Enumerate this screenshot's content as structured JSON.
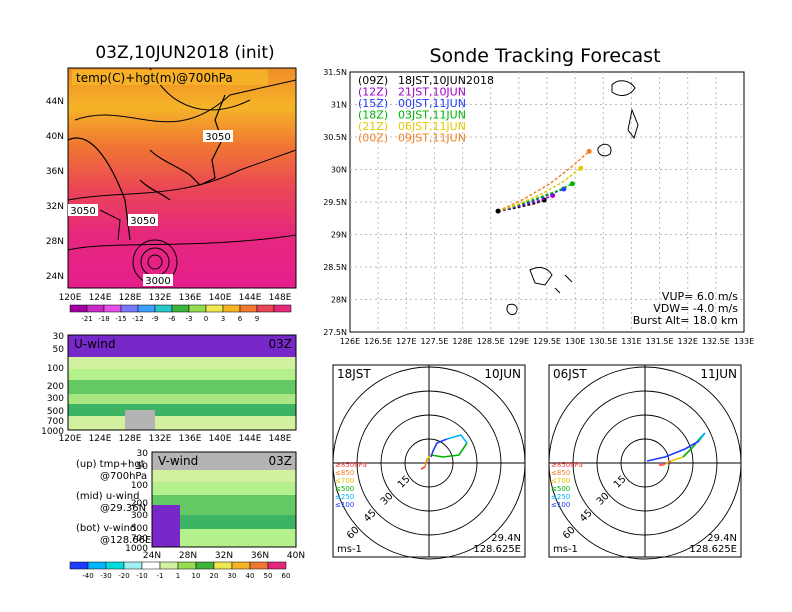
{
  "left": {
    "title": "03Z,10JUN2018 (init)",
    "map_label": "temp(C)+hgt(m)@700hPa",
    "lat_ticks": [
      "44N",
      "40N",
      "36N",
      "32N",
      "28N",
      "24N"
    ],
    "lon_ticks": [
      "120E",
      "124E",
      "128E",
      "132E",
      "136E",
      "140E",
      "144E",
      "148E"
    ],
    "contour_labels": [
      "3050",
      "3050",
      "3050",
      "3000"
    ],
    "temp_scale": [
      "-21",
      "-18",
      "-15",
      "-12",
      "-9",
      "-6",
      "-3",
      "0",
      "3",
      "6",
      "9"
    ],
    "u_panel": {
      "label": "U-wind",
      "time": "03Z",
      "p_ticks": [
        "30",
        "50",
        "100",
        "200",
        "300",
        "500",
        "700",
        "1000"
      ],
      "lon_ticks": [
        "120E",
        "124E",
        "128E",
        "132E",
        "136E",
        "140E",
        "144E",
        "148E"
      ]
    },
    "v_panel": {
      "label": "V-wind",
      "time": "03Z",
      "p_ticks": [
        "30",
        "50",
        "100",
        "200",
        "300",
        "500",
        "700",
        "1000"
      ],
      "lat_ticks": [
        "24N",
        "28N",
        "32N",
        "36N",
        "40N"
      ]
    },
    "legend_lines": [
      "(up) tmp+hgt",
      "@700hPa",
      "(mid) u-wind",
      "@29.36N",
      "(bot) v-wind",
      "@128.66E"
    ],
    "wind_scale": [
      "-40",
      "-30",
      "-20",
      "-10",
      "-1",
      "1",
      "10",
      "20",
      "30",
      "40",
      "50",
      "60"
    ]
  },
  "right": {
    "title": "Sonde Tracking Forecast",
    "vup": "VUP=  6.0  m/s",
    "vdw": "VDW= -4.0  m/s",
    "burst": "Burst Alt=  18.0  km",
    "legend": [
      {
        "code": "(09Z)",
        "time": "18JST,10JUN2018",
        "color": "#000000"
      },
      {
        "code": "(12Z)",
        "time": "21JST,10JUN",
        "color": "#a000c8"
      },
      {
        "code": "(15Z)",
        "time": "00JST,11JUN",
        "color": "#1e3cff"
      },
      {
        "code": "(18Z)",
        "time": "03JST,11JUN",
        "color": "#00b400"
      },
      {
        "code": "(21Z)",
        "time": "06JST,11JUN",
        "color": "#e6c800"
      },
      {
        "code": "(00Z)",
        "time": "09JST,11JUN",
        "color": "#f08228"
      }
    ]
  },
  "polar_left": {
    "time": "18JST",
    "date": "10JUN",
    "lat": "29.4N",
    "lon": "128.625E",
    "unit": "ms-1",
    "rings": [
      "15",
      "30",
      "45",
      "60"
    ],
    "levels": [
      "≥850hPa",
      "≤850",
      "≤700",
      "≤500",
      "≤250",
      "≤100"
    ]
  },
  "polar_right": {
    "time": "06JST",
    "date": "11JUN",
    "lat": "29.4N",
    "lon": "128.625E",
    "unit": "ms-1",
    "rings": [
      "15",
      "30",
      "45",
      "60"
    ],
    "levels": [
      "≥850hPa",
      "≤850",
      "≤700",
      "≤500",
      "≤250",
      "≤100"
    ]
  },
  "level_colors": [
    "#ff3c3c",
    "#f08228",
    "#e6c800",
    "#00b400",
    "#00b4ff",
    "#1e3cff"
  ],
  "chart_data": {
    "type": "line",
    "title": "Sonde Tracking Forecast",
    "xlabel": "",
    "ylabel": "",
    "x_ticks": [
      "126E",
      "126.5E",
      "127E",
      "127.5E",
      "128E",
      "128.5E",
      "129E",
      "129.5E",
      "130E",
      "130.5E",
      "131E",
      "131.5E",
      "132E",
      "132.5E",
      "133E"
    ],
    "y_ticks": [
      "27.5N",
      "28N",
      "28.5N",
      "29N",
      "29.5N",
      "30N",
      "30.5N",
      "31N",
      "31.5N"
    ],
    "xlim": [
      126,
      133
    ],
    "ylim": [
      27.5,
      31.5
    ],
    "grid": true,
    "launch": {
      "lon": 128.63,
      "lat": 29.36
    },
    "series": [
      {
        "name": "(09Z) 18JST,10JUN2018",
        "color": "#000000",
        "x": [
          128.63,
          128.9,
          129.1,
          129.3,
          129.45
        ],
        "y": [
          29.36,
          29.4,
          29.44,
          29.48,
          29.53
        ]
      },
      {
        "name": "(12Z) 21JST,10JUN",
        "color": "#a000c8",
        "x": [
          128.63,
          128.9,
          129.15,
          129.4,
          129.6
        ],
        "y": [
          29.36,
          29.41,
          29.47,
          29.53,
          29.6
        ]
      },
      {
        "name": "(15Z) 00JST,11JUN",
        "color": "#1e3cff",
        "x": [
          128.63,
          128.9,
          129.2,
          129.5,
          129.8
        ],
        "y": [
          29.36,
          29.42,
          29.5,
          29.6,
          29.7
        ]
      },
      {
        "name": "(18Z) 03JST,11JUN",
        "color": "#00b400",
        "x": [
          128.63,
          128.95,
          129.3,
          129.65,
          129.95
        ],
        "y": [
          29.36,
          29.44,
          29.55,
          29.66,
          29.78
        ]
      },
      {
        "name": "(21Z) 06JST,11JUN",
        "color": "#e6c800",
        "x": [
          128.63,
          129.0,
          129.4,
          129.8,
          130.1
        ],
        "y": [
          29.36,
          29.47,
          29.62,
          29.82,
          30.02
        ]
      },
      {
        "name": "(00Z) 09JST,11JUN",
        "color": "#f08228",
        "x": [
          128.63,
          129.1,
          129.55,
          129.95,
          130.25
        ],
        "y": [
          29.36,
          29.55,
          29.78,
          30.05,
          30.28
        ]
      }
    ]
  }
}
